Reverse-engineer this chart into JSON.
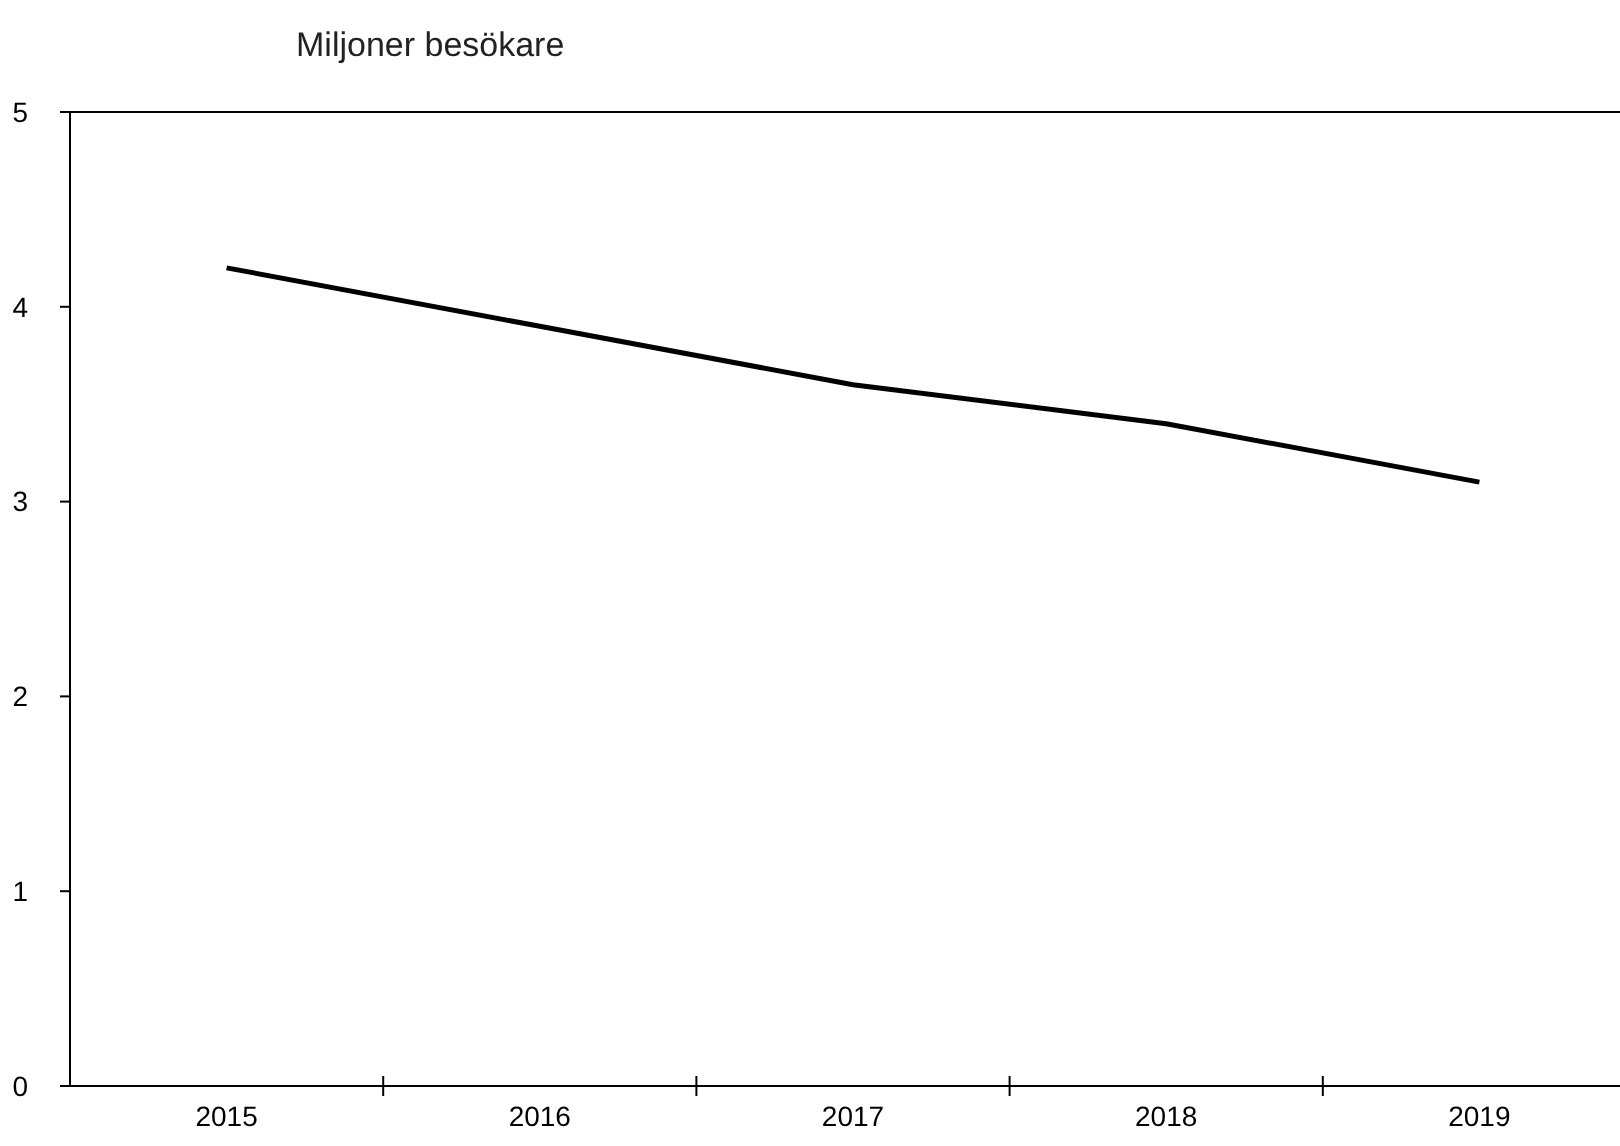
{
  "chart_data": {
    "type": "line",
    "title": "Miljoner besökare",
    "categories": [
      "2015",
      "2016",
      "2017",
      "2018",
      "2019"
    ],
    "series": [
      {
        "color": "#000000",
        "values": [
          4.2,
          3.9,
          3.6,
          3.4,
          3.1
        ]
      }
    ],
    "ylim": [
      0,
      5
    ],
    "yticks": [
      0,
      1,
      2,
      3,
      4,
      5
    ],
    "grid": false,
    "marker": "none",
    "line_style": "solid"
  }
}
